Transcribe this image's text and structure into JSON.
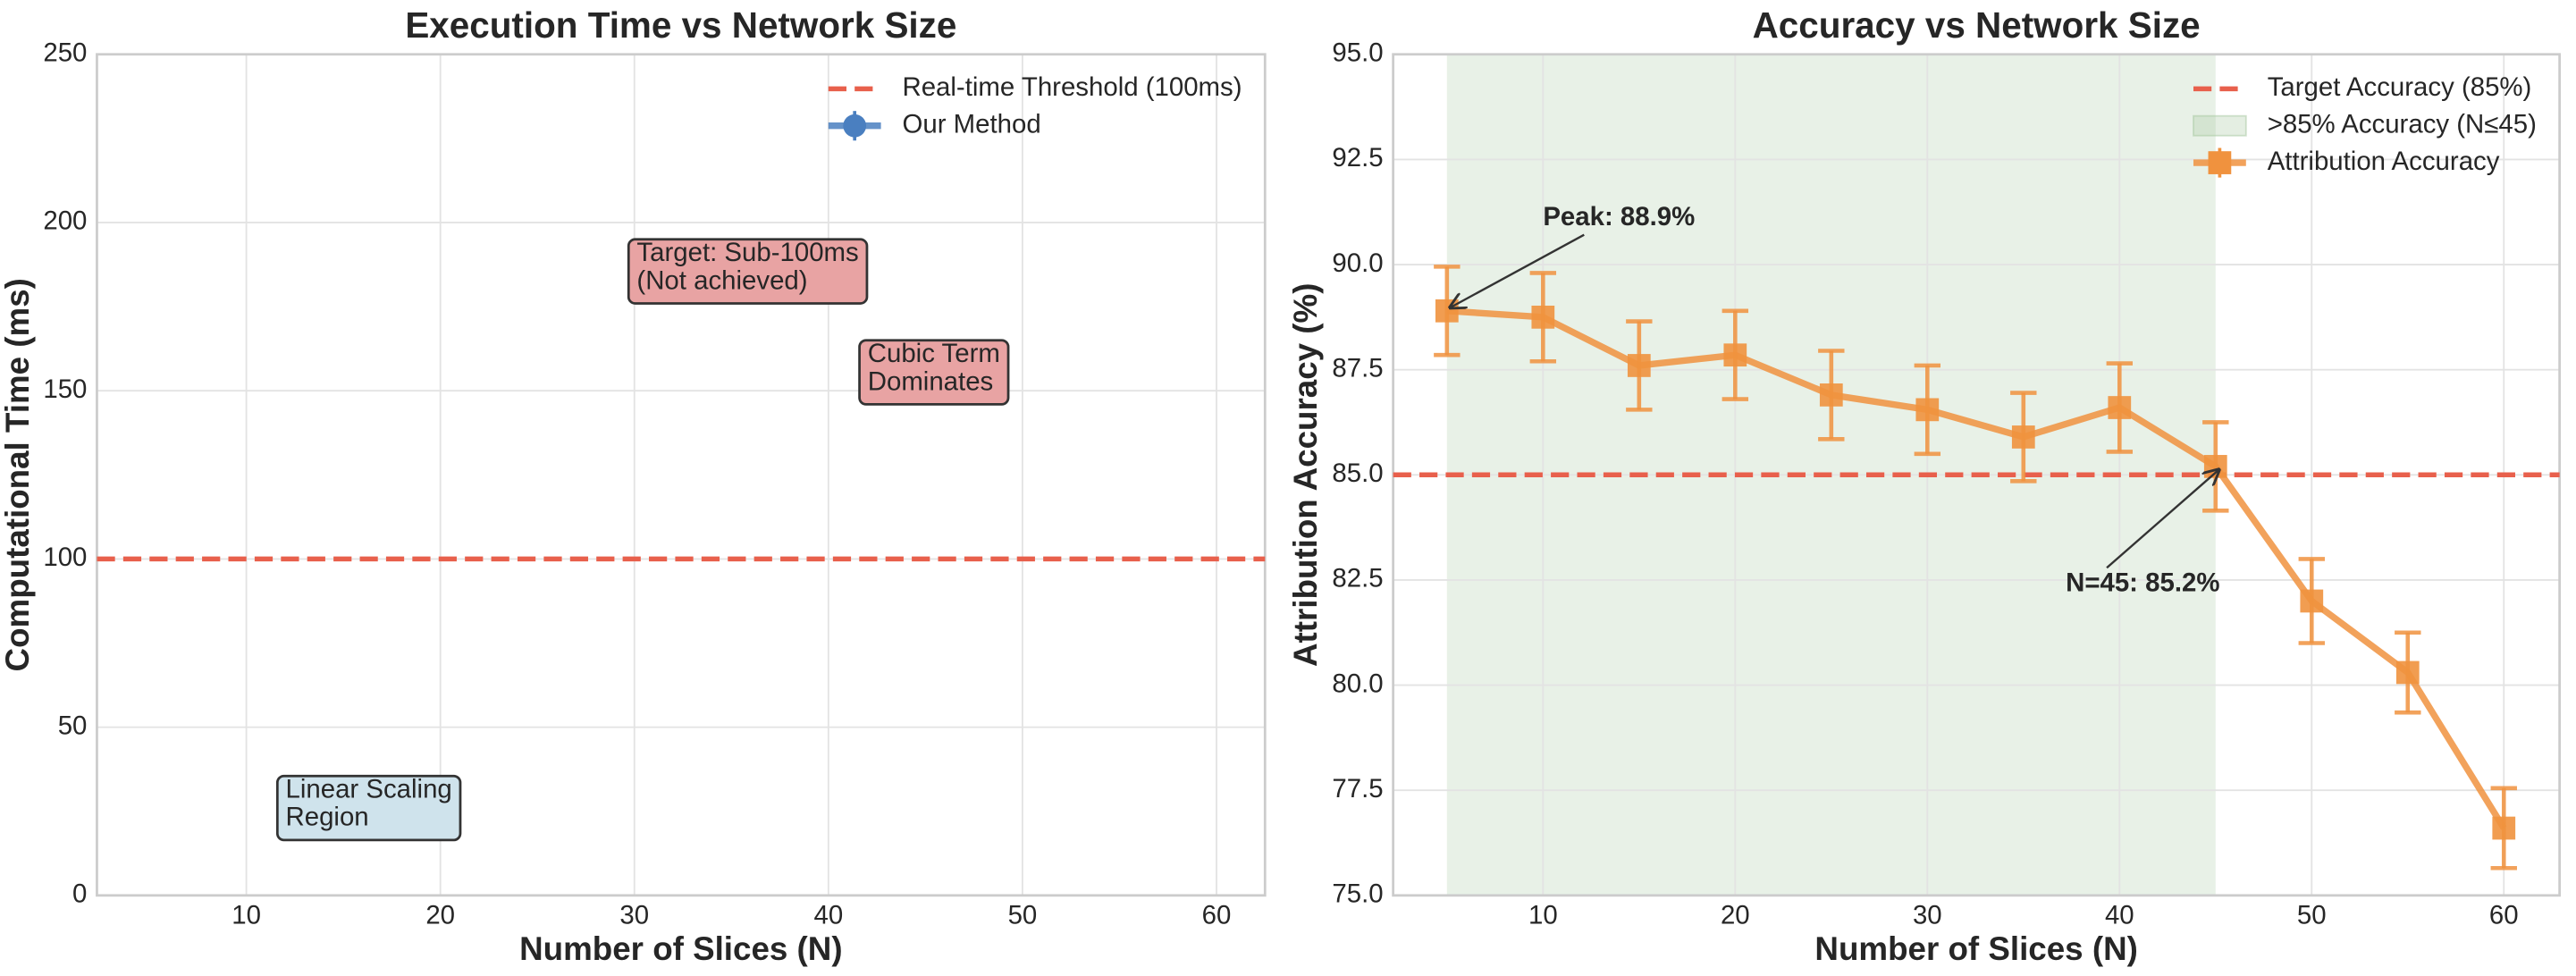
{
  "chart_data": [
    {
      "type": "line",
      "title": "Execution Time vs Network Size",
      "xlabel": "Number of Slices (N)",
      "ylabel": "Computational Time (ms)",
      "xlim": [
        2.3,
        62.5
      ],
      "xticks": [
        10,
        20,
        30,
        40,
        50,
        60
      ],
      "ylim": [
        0,
        250
      ],
      "yticks": [
        0,
        50,
        100,
        150,
        200,
        250
      ],
      "grid": true,
      "legend": "upper right",
      "hlines": [
        {
          "y": 100,
          "label": "Real-time Threshold (100ms)",
          "color": "#e8604c"
        }
      ],
      "spans": [],
      "series": [
        {
          "name": "Our Method",
          "color": "#4a7fc0",
          "marker": "circle",
          "x": [],
          "values": [],
          "errors": []
        }
      ],
      "annotations": [
        {
          "lines": [
            "Target: Sub-100ms",
            "(Not achieved)"
          ],
          "x": 29.7,
          "y": 195,
          "facecolor": "#e8a3a3"
        },
        {
          "lines": [
            "Cubic Term",
            "Dominates"
          ],
          "x": 41.6,
          "y": 165,
          "facecolor": "#e8a3a3"
        },
        {
          "lines": [
            "Linear Scaling",
            "Region"
          ],
          "x": 11.6,
          "y": 35.5,
          "facecolor": "#cfe3ec"
        }
      ]
    },
    {
      "type": "line",
      "title": "Accuracy vs Network Size",
      "xlabel": "Number of Slices (N)",
      "ylabel": "Attribution Accuracy (%)",
      "xlim": [
        2.2,
        62.9
      ],
      "xticks": [
        10,
        20,
        30,
        40,
        50,
        60
      ],
      "ylim": [
        75,
        95
      ],
      "yticks": [
        {
          "value": 75,
          "label": "75.0"
        },
        {
          "value": 77.5,
          "label": "77.5"
        },
        {
          "value": 80,
          "label": "80.0"
        },
        {
          "value": 82.5,
          "label": "82.5"
        },
        {
          "value": 85,
          "label": "85.0"
        },
        {
          "value": 87.5,
          "label": "87.5"
        },
        {
          "value": 90,
          "label": "90.0"
        },
        {
          "value": 92.5,
          "label": "92.5"
        },
        {
          "value": 95,
          "label": "95.0"
        }
      ],
      "grid": true,
      "legend": "upper right",
      "hlines": [
        {
          "y": 85,
          "label": "Target Accuracy (85%)",
          "color": "#e8604c"
        }
      ],
      "spans": [
        {
          "x": [
            5,
            45
          ],
          "label": ">85% Accuracy (N≤45)",
          "color": "#a5c8a0"
        }
      ],
      "series": [
        {
          "name": "Attribution Accuracy",
          "color": "#f0923e",
          "marker": "square",
          "x": [
            5,
            10,
            15,
            20,
            25,
            30,
            35,
            40,
            45,
            50,
            55,
            60
          ],
          "values": [
            88.9,
            88.75,
            87.6,
            87.85,
            86.9,
            86.55,
            85.9,
            86.6,
            85.2,
            82.0,
            80.3,
            76.6
          ],
          "errors": [
            1.05,
            1.05,
            1.05,
            1.05,
            1.05,
            1.05,
            1.05,
            1.05,
            1.05,
            1.0,
            0.95,
            0.95
          ]
        }
      ],
      "annotations": [
        {
          "text": "Peak: 88.9%",
          "x": 10,
          "y": 91.1,
          "xy": [
            5,
            88.9
          ]
        },
        {
          "text": "N=45: 85.2%",
          "x": 37.2,
          "y": 82.4,
          "xy": [
            45,
            85.2
          ]
        }
      ]
    }
  ]
}
